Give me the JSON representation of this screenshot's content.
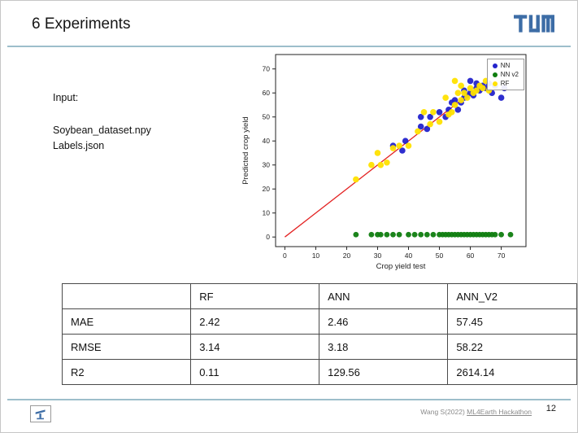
{
  "slide": {
    "title": "6 Experiments",
    "page_number": "12"
  },
  "colors": {
    "tum_blue": "#3d6da6",
    "rule_line": "#9dbecb",
    "nn_blue": "#2323cc",
    "nnv2_green": "#0f7d0f",
    "rf_yellow": "#ffe100",
    "fit_line_red": "#e32222"
  },
  "input_block": {
    "label": "Input:",
    "lines": [
      "Soybean_dataset.npy",
      "Labels.json"
    ]
  },
  "chart_data": {
    "type": "scatter",
    "xlabel": "Crop yield test",
    "ylabel": "Predicted crop yield",
    "xlim": [
      -3,
      78
    ],
    "ylim": [
      -4,
      76
    ],
    "xticks": [
      0,
      10,
      20,
      30,
      40,
      50,
      60,
      70
    ],
    "yticks": [
      0,
      10,
      20,
      30,
      40,
      50,
      60,
      70
    ],
    "grid": false,
    "legend_position": "upper right",
    "line": {
      "color": "#e32222",
      "from": [
        0,
        0
      ],
      "to": [
        63,
        63
      ]
    },
    "series": [
      {
        "name": "NN",
        "color": "#2323cc",
        "marker_radius": 3.8,
        "points": [
          [
            35,
            38
          ],
          [
            38,
            36
          ],
          [
            39,
            40
          ],
          [
            44,
            46
          ],
          [
            44,
            50
          ],
          [
            46,
            45
          ],
          [
            47,
            50
          ],
          [
            50,
            52
          ],
          [
            52,
            50
          ],
          [
            53,
            53
          ],
          [
            54,
            56
          ],
          [
            55,
            57
          ],
          [
            56,
            53
          ],
          [
            57,
            56
          ],
          [
            58,
            58
          ],
          [
            58,
            61
          ],
          [
            59,
            59
          ],
          [
            60,
            60
          ],
          [
            60,
            65
          ],
          [
            61,
            59
          ],
          [
            62,
            62
          ],
          [
            62,
            64
          ],
          [
            63,
            61
          ],
          [
            64,
            63
          ],
          [
            65,
            62
          ],
          [
            66,
            64
          ],
          [
            67,
            60
          ],
          [
            68,
            63
          ],
          [
            70,
            58
          ],
          [
            71,
            62
          ]
        ]
      },
      {
        "name": "NN v2",
        "color": "#0f7d0f",
        "marker_radius": 3.4,
        "points": [
          [
            23,
            1
          ],
          [
            28,
            1
          ],
          [
            30,
            1
          ],
          [
            31,
            1
          ],
          [
            33,
            1
          ],
          [
            35,
            1
          ],
          [
            37,
            1
          ],
          [
            40,
            1
          ],
          [
            42,
            1
          ],
          [
            44,
            1
          ],
          [
            46,
            1
          ],
          [
            48,
            1
          ],
          [
            50,
            1
          ],
          [
            51,
            1
          ],
          [
            52,
            1
          ],
          [
            53,
            1
          ],
          [
            54,
            1
          ],
          [
            55,
            1
          ],
          [
            56,
            1
          ],
          [
            57,
            1
          ],
          [
            58,
            1
          ],
          [
            59,
            1
          ],
          [
            60,
            1
          ],
          [
            61,
            1
          ],
          [
            62,
            1
          ],
          [
            63,
            1
          ],
          [
            64,
            1
          ],
          [
            65,
            1
          ],
          [
            66,
            1
          ],
          [
            67,
            1
          ],
          [
            68,
            1
          ],
          [
            70,
            1
          ],
          [
            73,
            1
          ]
        ]
      },
      {
        "name": "RF",
        "color": "#ffe100",
        "marker_radius": 3.8,
        "points": [
          [
            23,
            24
          ],
          [
            28,
            30
          ],
          [
            30,
            35
          ],
          [
            31,
            30
          ],
          [
            33,
            31
          ],
          [
            35,
            37
          ],
          [
            37,
            38
          ],
          [
            40,
            38
          ],
          [
            43,
            44
          ],
          [
            45,
            52
          ],
          [
            47,
            47
          ],
          [
            48,
            52
          ],
          [
            50,
            48
          ],
          [
            52,
            58
          ],
          [
            53,
            51
          ],
          [
            54,
            52
          ],
          [
            55,
            55
          ],
          [
            55,
            65
          ],
          [
            56,
            60
          ],
          [
            57,
            57
          ],
          [
            57,
            63
          ],
          [
            58,
            60
          ],
          [
            59,
            58
          ],
          [
            60,
            62
          ],
          [
            61,
            60
          ],
          [
            62,
            61
          ],
          [
            63,
            63
          ],
          [
            64,
            62
          ],
          [
            65,
            65
          ],
          [
            66,
            61
          ]
        ]
      }
    ]
  },
  "table": {
    "headers": [
      "",
      "RF",
      "ANN",
      "ANN_V2"
    ],
    "rows": [
      {
        "label": "MAE",
        "values": [
          "2.42",
          "2.46",
          "57.45"
        ]
      },
      {
        "label": "RMSE",
        "values": [
          "3.14",
          "3.18",
          "58.22"
        ]
      },
      {
        "label": "R2",
        "values": [
          "0.11",
          "129.56",
          "2614.14"
        ]
      }
    ]
  },
  "footer": {
    "credit_prefix": "Wang S(2022) ",
    "credit_link": "ML4Earth Hackathon"
  }
}
